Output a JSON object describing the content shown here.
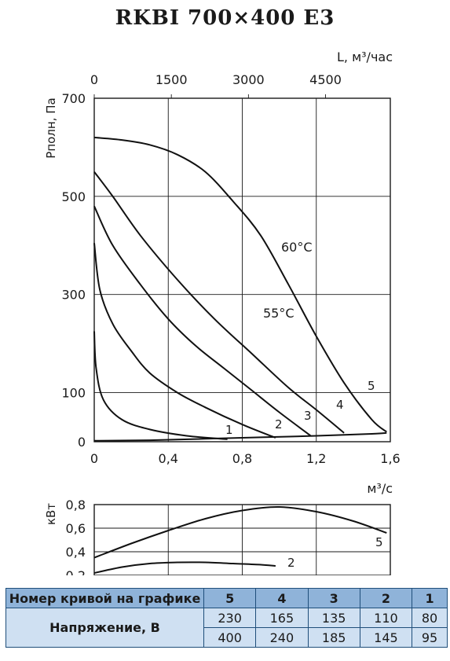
{
  "title": "RKBI 700×400 E3",
  "chart_data": [
    {
      "type": "line",
      "title": "RKBI 700×400 E3",
      "xlabel": "м³/с",
      "x2label": "L, м³/час",
      "ylabel": "Pполн, Па",
      "xlim": [
        0,
        1.6
      ],
      "ylim": [
        0,
        700
      ],
      "x_ticks": [
        "0",
        "0,4",
        "0,8",
        "1,2",
        "1,6"
      ],
      "x2_ticks": [
        "0",
        "1500",
        "3000",
        "4500"
      ],
      "y_ticks": [
        "0",
        "100",
        "300",
        "500",
        "700"
      ],
      "grid": true,
      "series": [
        {
          "name": "1",
          "x": [
            0,
            0.01,
            0.05,
            0.15,
            0.3,
            0.5,
            0.72
          ],
          "y": [
            225,
            150,
            85,
            45,
            25,
            12,
            5
          ]
        },
        {
          "name": "2",
          "x": [
            0,
            0.03,
            0.1,
            0.2,
            0.3,
            0.45,
            0.6,
            0.8,
            0.98
          ],
          "y": [
            405,
            310,
            240,
            185,
            140,
            100,
            70,
            35,
            8
          ]
        },
        {
          "name": "3",
          "x": [
            0,
            0.1,
            0.25,
            0.4,
            0.55,
            0.7,
            0.85,
            1.0,
            1.17
          ],
          "y": [
            480,
            400,
            320,
            250,
            195,
            150,
            105,
            60,
            12
          ]
        },
        {
          "name": "4",
          "x": [
            0,
            0.1,
            0.25,
            0.45,
            0.65,
            0.85,
            1.05,
            1.2,
            1.35
          ],
          "y": [
            550,
            500,
            420,
            330,
            250,
            180,
            110,
            65,
            18
          ]
        },
        {
          "name": "5",
          "x": [
            0,
            0.15,
            0.3,
            0.45,
            0.6,
            0.75,
            0.9,
            1.05,
            1.2,
            1.35,
            1.5,
            1.58
          ],
          "y": [
            620,
            615,
            605,
            585,
            550,
            490,
            420,
            320,
            215,
            120,
            45,
            20
          ]
        },
        {
          "name": "",
          "x": [
            0,
            0.3,
            0.6,
            0.9,
            1.2,
            1.5,
            1.58
          ],
          "y": [
            2,
            3,
            6,
            9,
            12,
            16,
            18
          ]
        }
      ],
      "annotations": [
        "60°C",
        "55°C"
      ]
    },
    {
      "type": "line",
      "ylabel": "кВт",
      "xlim": [
        0,
        1.6
      ],
      "ylim": [
        0.2,
        0.8
      ],
      "y_ticks": [
        "0,2",
        "0,4",
        "0,6",
        "0,8"
      ],
      "grid": true,
      "series": [
        {
          "name": "5",
          "x": [
            0,
            0.2,
            0.4,
            0.6,
            0.8,
            1.0,
            1.2,
            1.4,
            1.58
          ],
          "y": [
            0.35,
            0.47,
            0.58,
            0.68,
            0.75,
            0.78,
            0.74,
            0.66,
            0.56
          ]
        },
        {
          "name": "2",
          "x": [
            0,
            0.15,
            0.3,
            0.45,
            0.6,
            0.75,
            0.9,
            0.98
          ],
          "y": [
            0.22,
            0.27,
            0.3,
            0.31,
            0.31,
            0.3,
            0.29,
            0.28
          ]
        }
      ]
    }
  ],
  "table": {
    "header_label": "Номер кривой на графике",
    "curve_numbers": [
      "5",
      "4",
      "3",
      "2",
      "1"
    ],
    "row_label": "Напряжение, В",
    "voltages_row1": [
      "230",
      "165",
      "135",
      "110",
      "80"
    ],
    "voltages_row2": [
      "400",
      "240",
      "185",
      "145",
      "95"
    ]
  }
}
